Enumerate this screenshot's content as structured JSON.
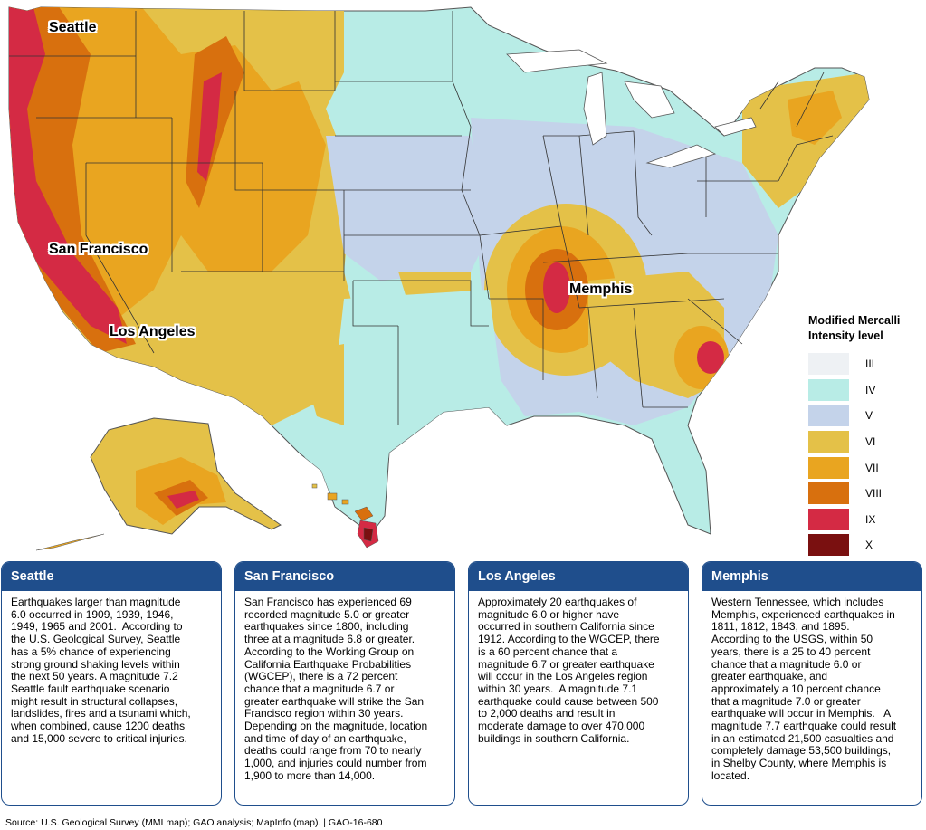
{
  "map": {
    "cities": [
      {
        "id": "seattle",
        "label": "Seattle"
      },
      {
        "id": "san-francisco",
        "label": "San Francisco"
      },
      {
        "id": "los-angeles",
        "label": "Los Angeles"
      },
      {
        "id": "memphis",
        "label": "Memphis"
      }
    ]
  },
  "legend": {
    "title_line1": "Modified Mercalli",
    "title_line2": "Intensity level",
    "levels": [
      {
        "label": "III",
        "color": "#eef1f4"
      },
      {
        "label": "IV",
        "color": "#b8ece6"
      },
      {
        "label": "V",
        "color": "#c4d3ea"
      },
      {
        "label": "VI",
        "color": "#e4c148"
      },
      {
        "label": "VII",
        "color": "#e9a520"
      },
      {
        "label": "VIII",
        "color": "#d8700e"
      },
      {
        "label": "IX",
        "color": "#d42a44"
      },
      {
        "label": "X",
        "color": "#7a1010"
      }
    ]
  },
  "panels": [
    {
      "title": "Seattle",
      "lines": [
        "Earthquakes larger than magnitude",
        "6.0 occurred in 1909, 1939, 1946,",
        "1949, 1965 and 2001.  According to",
        "the U.S. Geological Survey, Seattle",
        "has a 5% chance of experiencing",
        "strong ground shaking levels within",
        "the next 50 years. A magnitude 7.2",
        "Seattle fault earthquake scenario",
        "might result in structural collapses,",
        "landslides, fires and a tsunami which,",
        "when combined, cause 1200 deaths",
        "and 15,000 severe to critical injuries."
      ]
    },
    {
      "title": "San Francisco",
      "lines": [
        "San Francisco has experienced 69",
        "recorded magnitude 5.0 or greater",
        "earthquakes since 1800, including",
        "three at a magnitude 6.8 or greater.",
        "According to the Working Group on",
        "California Earthquake Probabilities",
        "(WGCEP), there is a 72 percent",
        "chance that a magnitude 6.7 or",
        "greater earthquake will strike the San",
        "Francisco region within 30 years.",
        "Depending on the magnitude, location",
        "and time of day of an earthquake,",
        "deaths could range from 70 to nearly",
        "1,000, and injuries could number from",
        "1,900 to more than 14,000."
      ]
    },
    {
      "title": "Los Angeles",
      "lines": [
        "Approximately 20 earthquakes of",
        "magnitude 6.0 or higher have",
        "occurred in southern California since",
        "1912. According to the WGCEP, there",
        "is a 60 percent chance that a",
        "magnitude 6.7 or greater earthquake",
        "will occur in the Los Angeles region",
        "within 30 years.  A magnitude 7.1",
        "earthquake could cause between 500",
        "to 2,000 deaths and result in",
        "moderate damage to over 470,000",
        "buildings in southern California."
      ]
    },
    {
      "title": "Memphis",
      "lines": [
        "Western Tennessee, which includes",
        "Memphis, experienced earthquakes in",
        "1811, 1812, 1843, and 1895.",
        "According to the USGS, within 50",
        "years, there is a 25 to 40 percent",
        "chance that a magnitude 6.0 or",
        "greater earthquake, and",
        "approximately a 10 percent chance",
        "that a magnitude 7.0 or greater",
        "earthquake will occur in Memphis.   A",
        "magnitude 7.7 earthquake could result",
        "in an estimated 21,500 casualties and",
        "completely damage 53,500 buildings,",
        "in Shelby County, where Memphis is",
        "located."
      ]
    }
  ],
  "source": "Source: U.S. Geological Survey (MMI map); GAO analysis; MapInfo (map).  |  GAO-16-680"
}
